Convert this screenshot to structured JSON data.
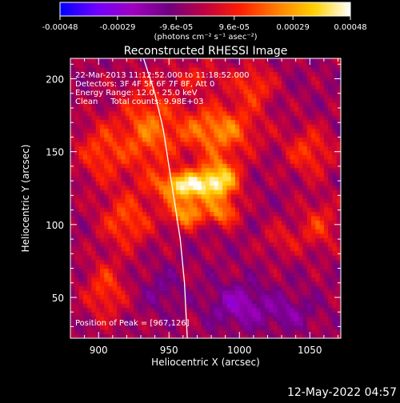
{
  "chart_data": {
    "type": "heatmap",
    "title": "Reconstructed RHESSI Image",
    "xlabel": "Heliocentric X (arcsec)",
    "ylabel": "Heliocentric Y (arcsec)",
    "xlim": [
      880,
      1072
    ],
    "ylim": [
      22,
      214
    ],
    "xticks": [
      900,
      950,
      1000,
      1050
    ],
    "yticks": [
      50,
      100,
      150,
      200
    ],
    "grid": false,
    "colorbar": {
      "placement": "top",
      "label": "(photons cm⁻² s⁻¹ asec⁻²)",
      "min": -0.00048,
      "max": 0.00048,
      "ticks": [
        "-0.00048",
        "-0.00029",
        "-9.6e-05",
        "9.6e-05",
        "0.00029",
        "0.00048"
      ],
      "tick_values": [
        -0.00048,
        -0.00029,
        -9.6e-05,
        9.6e-05,
        0.00029,
        0.00048
      ],
      "colors": [
        "#0000ff",
        "#7000ff",
        "#a000c0",
        "#700080",
        "#c00040",
        "#ff2000",
        "#ff8000",
        "#ffd000",
        "#ffffff"
      ]
    },
    "annotations": {
      "time_range": "22-Mar-2013 11:12:52.000 to 11:18:52.000",
      "detectors": "Detectors: 3F 4F 5F 6F 7F 8F, Att 0",
      "energy_range": "Energy Range: 12.0 - 25.0 keV",
      "method": "Clean     Total counts: 9.98E+03",
      "peak": "Position of Peak = [967,126]"
    },
    "peak_position": [
      967,
      126
    ],
    "limb_curve": [
      [
        932,
        214
      ],
      [
        940,
        190
      ],
      [
        946,
        165
      ],
      [
        950,
        140
      ],
      [
        954,
        115
      ],
      [
        958,
        90
      ],
      [
        961,
        60
      ],
      [
        963,
        22
      ]
    ],
    "sources": [
      {
        "x": 962,
        "y": 127,
        "amp": 0.00046,
        "sx": 14,
        "sy": 7
      },
      {
        "x": 986,
        "y": 131,
        "amp": 0.0004,
        "sx": 10,
        "sy": 10
      },
      {
        "x": 962,
        "y": 108,
        "amp": 0.00033,
        "sx": 9,
        "sy": 7
      },
      {
        "x": 988,
        "y": 108,
        "amp": 0.00027,
        "sx": 8,
        "sy": 6
      },
      {
        "x": 984,
        "y": 165,
        "amp": 0.0003,
        "sx": 20,
        "sy": 12
      },
      {
        "x": 935,
        "y": 165,
        "amp": 0.00024,
        "sx": 14,
        "sy": 22
      },
      {
        "x": 902,
        "y": 150,
        "amp": 0.00019,
        "sx": 12,
        "sy": 15
      },
      {
        "x": 920,
        "y": 103,
        "amp": 0.00021,
        "sx": 13,
        "sy": 13
      },
      {
        "x": 905,
        "y": 55,
        "amp": 0.00019,
        "sx": 10,
        "sy": 14
      },
      {
        "x": 1050,
        "y": 150,
        "amp": 0.00018,
        "sx": 12,
        "sy": 12
      },
      {
        "x": 1057,
        "y": 100,
        "amp": 0.00016,
        "sx": 10,
        "sy": 12
      },
      {
        "x": 1010,
        "y": 195,
        "amp": 0.00019,
        "sx": 10,
        "sy": 10
      },
      {
        "x": 972,
        "y": 202,
        "amp": 0.00012,
        "sx": 14,
        "sy": 8
      },
      {
        "x": 1030,
        "y": 90,
        "amp": 0.00011,
        "sx": 10,
        "sy": 8
      },
      {
        "x": 1000,
        "y": 45,
        "amp": -0.00018,
        "sx": 14,
        "sy": 10
      },
      {
        "x": 1035,
        "y": 40,
        "amp": -0.00012,
        "sx": 12,
        "sy": 8
      },
      {
        "x": 945,
        "y": 55,
        "amp": -8e-05,
        "sx": 10,
        "sy": 10
      }
    ]
  },
  "footer": {
    "date": "12-May-2022 04:57"
  }
}
